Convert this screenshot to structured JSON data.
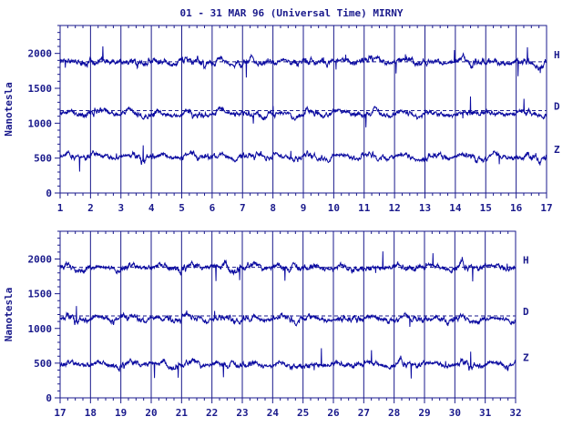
{
  "title": "01 - 31 MAR 96 (Universal Time) MIRNY",
  "chart_data": [
    {
      "type": "line",
      "ylabel": "Nanotesla",
      "ylim": [
        0,
        2400
      ],
      "yticks": [
        0,
        500,
        1000,
        1500,
        2000
      ],
      "xticks": [
        "1",
        "2",
        "3",
        "4",
        "5",
        "6",
        "7",
        "8",
        "9",
        "10",
        "11",
        "12",
        "13",
        "14",
        "15",
        "16",
        "17"
      ],
      "baseline_dashes": [
        1880,
        1180
      ],
      "series": [
        {
          "name": "H",
          "baseline": 1880
        },
        {
          "name": "D",
          "baseline": 1140
        },
        {
          "name": "Z",
          "baseline": 520
        }
      ]
    },
    {
      "type": "line",
      "ylabel": "Nanotesla",
      "ylim": [
        0,
        2400
      ],
      "yticks": [
        0,
        500,
        1000,
        1500,
        2000
      ],
      "xticks": [
        "17",
        "18",
        "19",
        "20",
        "21",
        "22",
        "23",
        "24",
        "25",
        "26",
        "27",
        "28",
        "29",
        "30",
        "31",
        "32"
      ],
      "baseline_dashes": [
        1880,
        1180
      ],
      "series": [
        {
          "name": "H",
          "baseline": 1880
        },
        {
          "name": "D",
          "baseline": 1140
        },
        {
          "name": "Z",
          "baseline": 480
        }
      ]
    }
  ],
  "colors": {
    "ink": "#1a1a8c",
    "trace": "#0a0aa0"
  }
}
